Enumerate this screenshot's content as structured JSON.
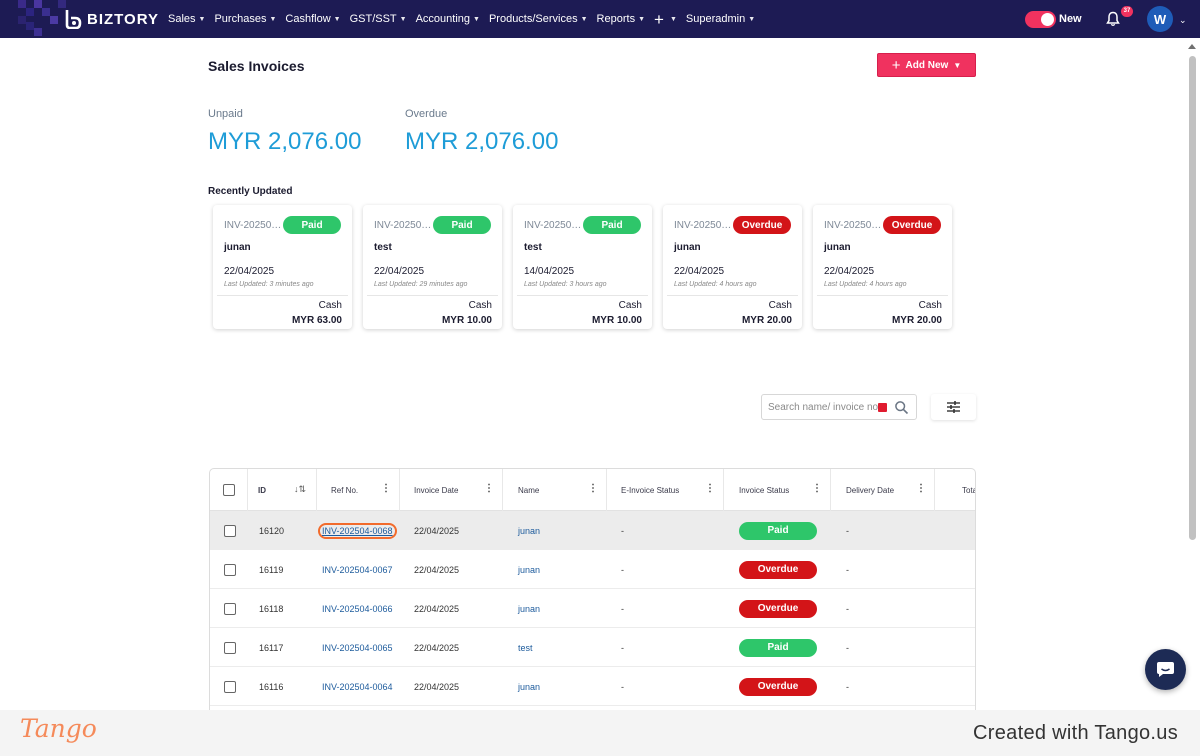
{
  "nav": {
    "brand": "BIZTORY",
    "menu": [
      {
        "label": "Sales"
      },
      {
        "label": "Purchases"
      },
      {
        "label": "Cashflow"
      },
      {
        "label": "GST/SST"
      },
      {
        "label": "Accounting"
      },
      {
        "label": "Products/Services"
      },
      {
        "label": "Reports"
      },
      {
        "label": "+"
      },
      {
        "label": "Superadmin"
      }
    ],
    "toggle_label": "New",
    "toggle_on": true,
    "notification_count": "37",
    "avatar_initial": "W",
    "accent_color": "#f0325f",
    "bar_color": "#1d1b54"
  },
  "page": {
    "title": "Sales Invoices",
    "add_button_label": "Add New"
  },
  "stats": {
    "unpaid_label": "Unpaid",
    "unpaid_value": "MYR 2,076.00",
    "overdue_label": "Overdue",
    "overdue_value": "MYR 2,076.00"
  },
  "recent": {
    "title": "Recently Updated",
    "cards": [
      {
        "ref": "INV-202504…",
        "status": "Paid",
        "status_kind": "paid",
        "name": "junan",
        "date": "22/04/2025",
        "updated": "Last Updated: 3 minutes ago",
        "method": "Cash",
        "amount": "MYR 63.00"
      },
      {
        "ref": "INV-202504…",
        "status": "Paid",
        "status_kind": "paid",
        "name": "test",
        "date": "22/04/2025",
        "updated": "Last Updated: 29 minutes ago",
        "method": "Cash",
        "amount": "MYR 10.00"
      },
      {
        "ref": "INV-202504…",
        "status": "Paid",
        "status_kind": "paid",
        "name": "test",
        "date": "14/04/2025",
        "updated": "Last Updated: 3 hours ago",
        "method": "Cash",
        "amount": "MYR 10.00"
      },
      {
        "ref": "INV-202504…",
        "status": "Overdue",
        "status_kind": "overdue",
        "name": "junan",
        "date": "22/04/2025",
        "updated": "Last Updated: 4 hours ago",
        "method": "Cash",
        "amount": "MYR 20.00"
      },
      {
        "ref": "INV-202504…",
        "status": "Overdue",
        "status_kind": "overdue",
        "name": "junan",
        "date": "22/04/2025",
        "updated": "Last Updated: 4 hours ago",
        "method": "Cash",
        "amount": "MYR 20.00"
      }
    ]
  },
  "search": {
    "placeholder": "Search name/ invoice no."
  },
  "table": {
    "columns": [
      {
        "label": "ID"
      },
      {
        "label": "Ref No."
      },
      {
        "label": "Invoice Date"
      },
      {
        "label": "Name"
      },
      {
        "label": "E-Invoice Status"
      },
      {
        "label": "Invoice Status"
      },
      {
        "label": "Delivery Date"
      },
      {
        "label": "Tota"
      }
    ],
    "rows": [
      {
        "id": "16120",
        "ref": "INV-202504-0068",
        "date": "22/04/2025",
        "name": "junan",
        "einvoice": "-",
        "status": "Paid",
        "status_kind": "paid",
        "delivery": "-",
        "highlighted": true
      },
      {
        "id": "16119",
        "ref": "INV-202504-0067",
        "date": "22/04/2025",
        "name": "junan",
        "einvoice": "-",
        "status": "Overdue",
        "status_kind": "overdue",
        "delivery": "-"
      },
      {
        "id": "16118",
        "ref": "INV-202504-0066",
        "date": "22/04/2025",
        "name": "junan",
        "einvoice": "-",
        "status": "Overdue",
        "status_kind": "overdue",
        "delivery": "-"
      },
      {
        "id": "16117",
        "ref": "INV-202504-0065",
        "date": "22/04/2025",
        "name": "test",
        "einvoice": "-",
        "status": "Paid",
        "status_kind": "paid",
        "delivery": "-"
      },
      {
        "id": "16116",
        "ref": "INV-202504-0064",
        "date": "22/04/2025",
        "name": "junan",
        "einvoice": "-",
        "status": "Overdue",
        "status_kind": "overdue",
        "delivery": "-"
      }
    ]
  },
  "status_colors": {
    "paid": "#2ec66a",
    "overdue": "#d31418"
  },
  "footer": {
    "logo": "Tango",
    "credit": "Created with Tango.us"
  }
}
